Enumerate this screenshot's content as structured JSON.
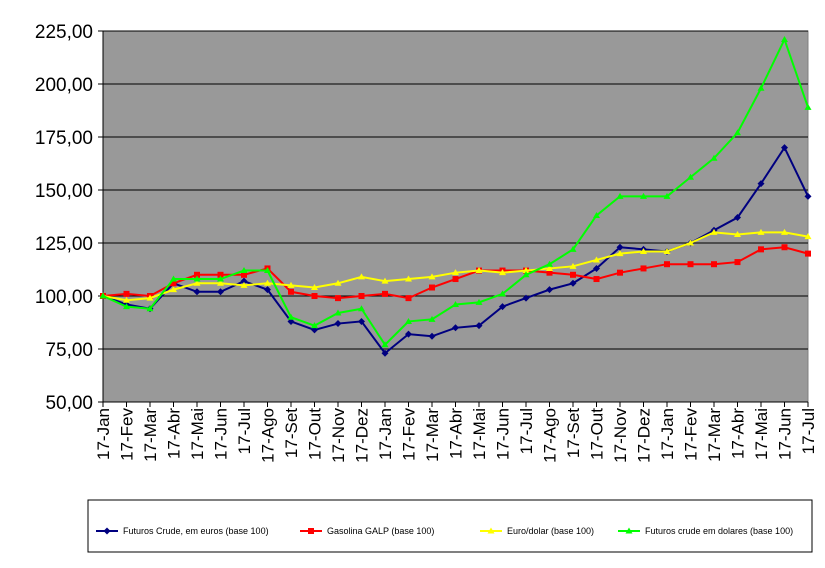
{
  "chart_data": {
    "type": "line",
    "categories": [
      "17-Jan",
      "17-Fev",
      "17-Mar",
      "17-Abr",
      "17-Mai",
      "17-Jun",
      "17-Jul",
      "17-Ago",
      "17-Set",
      "17-Out",
      "17-Nov",
      "17-Dez",
      "17-Jan",
      "17-Fev",
      "17-Mar",
      "17-Abr",
      "17-Mai",
      "17-Jun",
      "17-Jul",
      "17-Ago",
      "17-Set",
      "17-Out",
      "17-Nov",
      "17-Dez",
      "17-Jan",
      "17-Fev",
      "17-Mar",
      "17-Abr",
      "17-Mai",
      "17-Jun",
      "17-Jul"
    ],
    "series": [
      {
        "name": "Futuros Crude, em euros (base 100)",
        "color": "#000080",
        "marker": "diamond",
        "values": [
          100,
          96,
          94,
          106,
          102,
          102,
          107,
          103,
          88,
          84,
          87,
          88,
          73,
          82,
          81,
          85,
          86,
          95,
          99,
          103,
          106,
          113,
          123,
          122,
          121,
          125,
          131,
          137,
          153,
          170,
          147
        ]
      },
      {
        "name": "Gasolina GALP (base 100)",
        "color": "#ff0000",
        "marker": "square",
        "values": [
          100,
          101,
          100,
          106,
          110,
          110,
          110,
          113,
          102,
          100,
          99,
          100,
          101,
          99,
          104,
          108,
          112,
          112,
          112,
          111,
          110,
          108,
          111,
          113,
          115,
          115,
          115,
          116,
          122,
          123,
          120
        ]
      },
      {
        "name": "Euro/dolar (base 100)",
        "color": "#ffff00",
        "marker": "triangle",
        "values": [
          100,
          98,
          99,
          103,
          106,
          106,
          105,
          106,
          105,
          104,
          106,
          109,
          107,
          108,
          109,
          111,
          112,
          111,
          112,
          113,
          114,
          117,
          120,
          121,
          121,
          125,
          130,
          129,
          130,
          130,
          128
        ]
      },
      {
        "name": "Futuros crude em dolares (base 100)",
        "color": "#00ff00",
        "marker": "triangle",
        "values": [
          100,
          95,
          94,
          108,
          108,
          108,
          112,
          112,
          90,
          86,
          92,
          94,
          77,
          88,
          89,
          96,
          97,
          101,
          110,
          115,
          122,
          138,
          147,
          147,
          147,
          156,
          165,
          177,
          198,
          221,
          189
        ]
      }
    ],
    "ylim": [
      50,
      225
    ],
    "yticks": [
      {
        "value": 50,
        "label": "50,00"
      },
      {
        "value": 75,
        "label": "75,00"
      },
      {
        "value": 100,
        "label": "100,00"
      },
      {
        "value": 125,
        "label": "125,00"
      },
      {
        "value": 150,
        "label": "150,00"
      },
      {
        "value": 175,
        "label": "175,00"
      },
      {
        "value": 200,
        "label": "200,00"
      },
      {
        "value": 225,
        "label": "225,00"
      }
    ],
    "grid": true,
    "legend": "bottom",
    "plot_background": "#999999"
  }
}
